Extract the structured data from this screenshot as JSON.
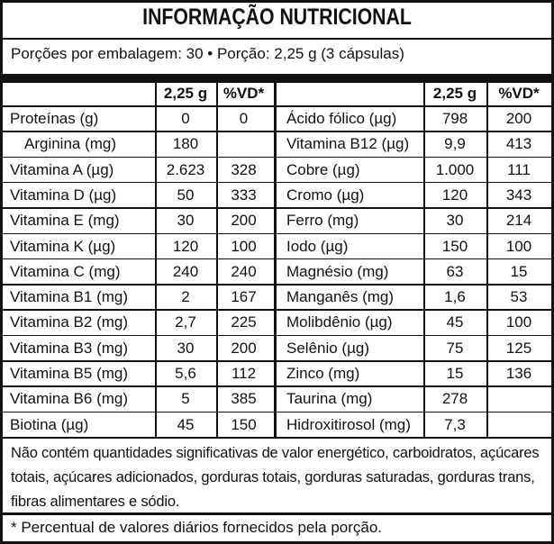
{
  "title": "INFORMAÇÃO NUTRICIONAL",
  "serving": "Porções por embalagem: 30 • Porção: 2,25 g (3 cápsulas)",
  "table": {
    "header": [
      "2,25 g",
      "%VD*"
    ],
    "left": [
      [
        "Proteínas (g)",
        "0",
        "0"
      ],
      [
        "Arginina (mg)",
        "180",
        null
      ],
      [
        "Vitamina A (µg)",
        "2.623",
        "328"
      ],
      [
        "Vitamina D (µg)",
        "50",
        "333"
      ],
      [
        "Vitamina E (mg)",
        "30",
        "200"
      ],
      [
        "Vitamina K (µg)",
        "120",
        "100"
      ],
      [
        "Vitamina C (mg)",
        "240",
        "240"
      ],
      [
        "Vitamina B1 (mg)",
        "2",
        "167"
      ],
      [
        "Vitamina B2 (mg)",
        "2,7",
        "225"
      ],
      [
        "Vitamina B3 (mg)",
        "30",
        "200"
      ],
      [
        "Vitamina B5 (mg)",
        "5,6",
        "112"
      ],
      [
        "Vitamina B6 (mg)",
        "5",
        "385"
      ],
      [
        "Biotina (µg)",
        "45",
        "150"
      ]
    ],
    "right": [
      [
        "Ácido fólico (µg)",
        "798",
        "200"
      ],
      [
        "Vitamina B12 (µg)",
        "9,9",
        "413"
      ],
      [
        "Cobre (µg)",
        "1.000",
        "111"
      ],
      [
        "Cromo (µg)",
        "120",
        "343"
      ],
      [
        "Ferro (mg)",
        "30",
        "214"
      ],
      [
        "Iodo (µg)",
        "150",
        "100"
      ],
      [
        "Magnésio (mg)",
        "63",
        "15"
      ],
      [
        "Manganês (mg)",
        "1,6",
        "53"
      ],
      [
        "Molibdênio (µg)",
        "45",
        "100"
      ],
      [
        "Selênio (µg)",
        "75",
        "125"
      ],
      [
        "Zinco (mg)",
        "15",
        "136"
      ],
      [
        "Taurina (mg)",
        "278",
        null
      ],
      [
        "Hidroxitirosol (mg)",
        "7,3",
        null
      ]
    ]
  },
  "footer": "Não contém quantidades significativas de valor energético, carboidratos, açúcares totais, açúcares adicionados, gorduras totais, gorduras saturadas, gorduras trans, fibras alimentares e sódio.",
  "note": "* Percentual de valores diários fornecidos pela porção."
}
